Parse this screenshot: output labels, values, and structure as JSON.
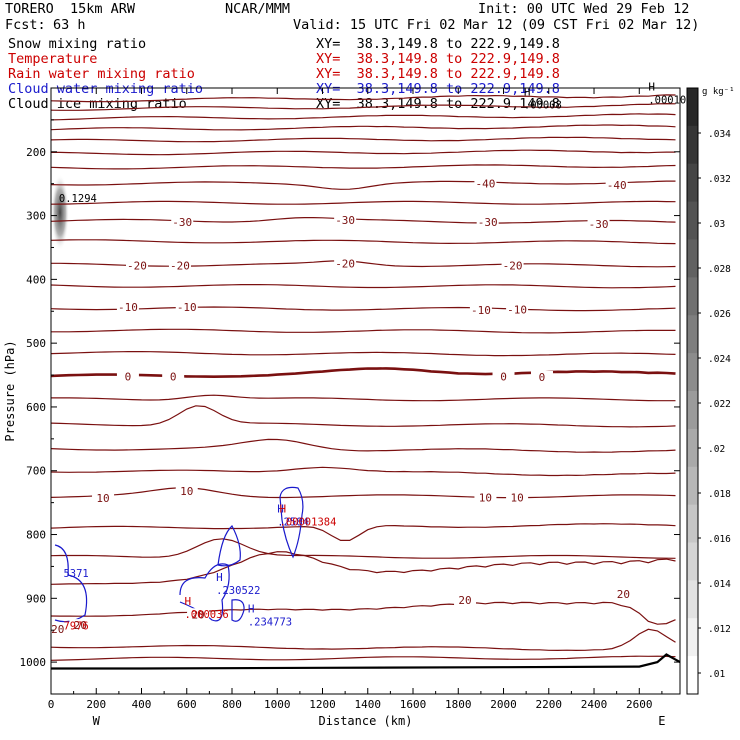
{
  "header": {
    "model": "TORERO  15km ARW",
    "center": "NCAR/MMM",
    "init": "Init: 00 UTC Wed 29 Feb 12",
    "fcst_label": "Fcst:",
    "fcst_value": "63 h",
    "valid": "Valid: 15 UTC Fri 02 Mar 12 (09 CST Fri 02 Mar 12)"
  },
  "fields": [
    {
      "name": "Snow mixing ratio",
      "xy": "XY=  38.3,149.8 to 222.9,149.8",
      "color": "#000000"
    },
    {
      "name": "Temperature",
      "xy": "XY=  38.3,149.8 to 222.9,149.8",
      "color": "#cc0000"
    },
    {
      "name": "Rain water mixing ratio",
      "xy": "XY=  38.3,149.8 to 222.9,149.8",
      "color": "#cc0000"
    },
    {
      "name": "Cloud water mixing ratio",
      "xy": "XY=  38.3,149.8 to 222.9,149.8",
      "color": "#1a1acc"
    },
    {
      "name": "Cloud ice mixing ratio",
      "xy": "XY=  38.3,149.8 to 222.9,149.8",
      "color": "#000000"
    }
  ],
  "chart_data": {
    "type": "cross-section contour",
    "xlabel": "Distance (km)",
    "ylabel": "Pressure (hPa)",
    "xlim": [
      0,
      2780
    ],
    "ylim": [
      1050,
      100
    ],
    "x_ticks": [
      0,
      200,
      400,
      600,
      800,
      1000,
      1200,
      1400,
      1600,
      1800,
      2000,
      2200,
      2400,
      2600
    ],
    "y_ticks": [
      200,
      300,
      400,
      500,
      600,
      700,
      800,
      900,
      1000
    ],
    "left_end_label": "W",
    "right_end_label": "E",
    "colorbar": {
      "unit": "g kg⁻¹",
      "ticks": [
        ".034",
        ".032",
        ".03",
        ".028",
        ".026",
        ".024",
        ".022",
        ".02",
        ".018",
        ".016",
        ".014",
        ".012",
        ".01"
      ]
    },
    "temperature_contour_labels": [
      {
        "label": "-40",
        "x": 1920,
        "p": 250
      },
      {
        "label": "-40",
        "x": 2500,
        "p": 252
      },
      {
        "label": "-30",
        "x": 580,
        "p": 310
      },
      {
        "label": "-30",
        "x": 1300,
        "p": 307
      },
      {
        "label": "-30",
        "x": 1930,
        "p": 310
      },
      {
        "label": "-30",
        "x": 2420,
        "p": 313
      },
      {
        "label": "-20",
        "x": 380,
        "p": 378
      },
      {
        "label": "-20",
        "x": 570,
        "p": 378
      },
      {
        "label": "-20",
        "x": 1300,
        "p": 375
      },
      {
        "label": "-20",
        "x": 2040,
        "p": 378
      },
      {
        "label": "-10",
        "x": 340,
        "p": 443
      },
      {
        "label": "-10",
        "x": 600,
        "p": 443
      },
      {
        "label": "-10",
        "x": 1900,
        "p": 448
      },
      {
        "label": "-10",
        "x": 2060,
        "p": 447
      },
      {
        "label": "0",
        "x": 340,
        "p": 552
      },
      {
        "label": "0",
        "x": 540,
        "p": 552
      },
      {
        "label": "0",
        "x": 2000,
        "p": 552
      },
      {
        "label": "0",
        "x": 2170,
        "p": 553
      },
      {
        "label": "10",
        "x": 230,
        "p": 743
      },
      {
        "label": "10",
        "x": 600,
        "p": 732
      },
      {
        "label": "10",
        "x": 1920,
        "p": 742
      },
      {
        "label": "10",
        "x": 2060,
        "p": 742
      },
      {
        "label": "20",
        "x": 30,
        "p": 948
      },
      {
        "label": "20",
        "x": 130,
        "p": 942
      },
      {
        "label": "20",
        "x": 650,
        "p": 925
      },
      {
        "label": "20",
        "x": 1830,
        "p": 903
      },
      {
        "label": "20",
        "x": 2530,
        "p": 893
      }
    ],
    "extrema_labels": [
      {
        "letter": "H",
        "value": ".000101",
        "x": 2640,
        "p": 113,
        "series": "snow"
      },
      {
        "letter": "H",
        "value": ".00008",
        "x": 2090,
        "p": 121,
        "series": "cloud ice"
      },
      {
        "letter": "H",
        "value": ".2584",
        "x": 1000,
        "p": 775,
        "series": "cloud water"
      },
      {
        "letter": "H",
        "value": ".00001384",
        "x": 1010,
        "p": 775,
        "series": "rain water"
      },
      {
        "letter": "H",
        "value": ".230522",
        "x": 730,
        "p": 882,
        "series": "cloud water"
      },
      {
        "letter": "H",
        "value": ".000036",
        "x": 590,
        "p": 920,
        "series": "rain water"
      },
      {
        "letter": "H",
        "value": ".234773",
        "x": 870,
        "p": 932,
        "series": "cloud water"
      },
      {
        "letter": "",
        "value": "0.1294",
        "x": 35,
        "p": 268,
        "series": "snow"
      },
      {
        "letter": "",
        "value": "5371",
        "x": 55,
        "p": 856,
        "series": "cloud water"
      },
      {
        "letter": "",
        "value": "7976",
        "x": 55,
        "p": 938,
        "series": "rain water"
      }
    ]
  }
}
